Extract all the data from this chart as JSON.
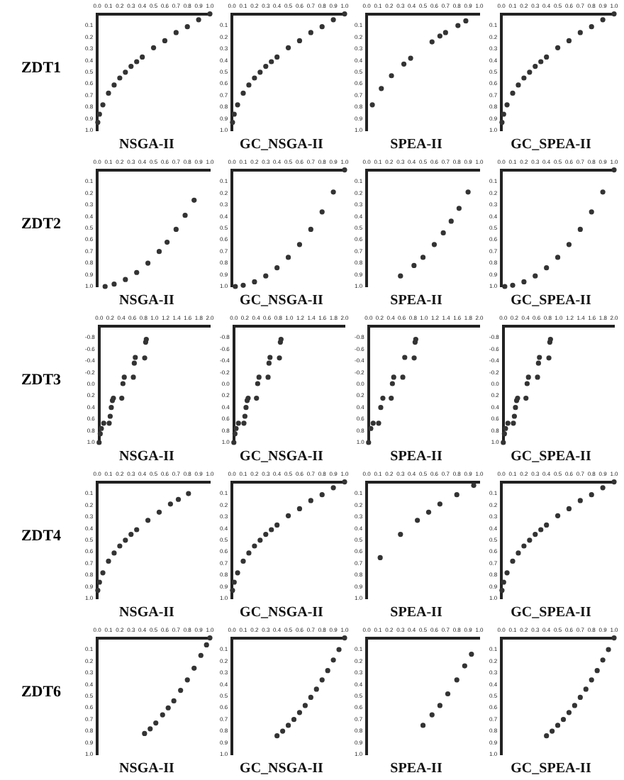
{
  "chart_data": [
    {
      "type": "scatter",
      "title": "NSGA-II",
      "ylabel": "ZDT1",
      "color": "#333333",
      "marker": "circle",
      "xlim": [
        0,
        1
      ],
      "ylim": [
        1,
        0
      ],
      "xticks": [
        {
          "value": 0,
          "label": "0.0"
        },
        0.1,
        0.2,
        0.3,
        0.4,
        0.5,
        0.6,
        0.7,
        0.8,
        0.9,
        {
          "value": 1,
          "label": "1.0"
        }
      ],
      "yticks": [
        {
          "value": 0,
          "label": null
        },
        0.1,
        0.2,
        0.3,
        0.4,
        0.5,
        0.6,
        0.7,
        0.8,
        0.9,
        {
          "value": 1,
          "label": "1.0"
        }
      ],
      "x": [
        0.005,
        0.02,
        0.05,
        0.1,
        0.15,
        0.2,
        0.25,
        0.3,
        0.35,
        0.4,
        0.5,
        0.6,
        0.7,
        0.8,
        0.9,
        1.0
      ],
      "values": [
        0.93,
        0.86,
        0.78,
        0.68,
        0.61,
        0.55,
        0.5,
        0.45,
        0.41,
        0.37,
        0.29,
        0.23,
        0.16,
        0.11,
        0.05,
        0.0
      ]
    },
    {
      "type": "scatter",
      "title": "GC_NSGA-II",
      "color": "#333333",
      "marker": "circle",
      "xlim": [
        0,
        1
      ],
      "ylim": [
        1,
        0
      ],
      "xticks": [
        {
          "value": 0,
          "label": "0.0"
        },
        0.1,
        0.2,
        0.3,
        0.4,
        0.5,
        0.6,
        0.7,
        0.8,
        0.9,
        {
          "value": 1,
          "label": "1.0"
        }
      ],
      "yticks": [
        {
          "value": 0,
          "label": null
        },
        0.1,
        0.2,
        0.3,
        0.4,
        0.5,
        0.6,
        0.7,
        0.8,
        0.9,
        {
          "value": 1,
          "label": "1.0"
        }
      ],
      "x": [
        0.005,
        0.02,
        0.05,
        0.1,
        0.15,
        0.2,
        0.25,
        0.3,
        0.35,
        0.4,
        0.5,
        0.6,
        0.7,
        0.8,
        0.9,
        1.0
      ],
      "values": [
        0.93,
        0.86,
        0.78,
        0.68,
        0.61,
        0.55,
        0.5,
        0.45,
        0.41,
        0.37,
        0.29,
        0.23,
        0.16,
        0.11,
        0.05,
        0.0
      ]
    },
    {
      "type": "scatter",
      "title": "SPEA-II",
      "color": "#333333",
      "marker": "circle",
      "xlim": [
        0,
        1
      ],
      "ylim": [
        1,
        0
      ],
      "xticks": [
        {
          "value": 0,
          "label": "0.0"
        },
        0.1,
        0.2,
        0.3,
        0.4,
        0.5,
        0.6,
        0.7,
        0.8,
        0.9,
        {
          "value": 1,
          "label": "1.0"
        }
      ],
      "yticks": [
        {
          "value": 0,
          "label": null
        },
        0.1,
        0.2,
        0.3,
        0.4,
        0.5,
        0.6,
        0.7,
        0.8,
        0.9,
        {
          "value": 1,
          "label": "1.0"
        }
      ],
      "x": [
        0.05,
        0.13,
        0.22,
        0.33,
        0.39,
        0.58,
        0.65,
        0.7,
        0.81,
        0.88
      ],
      "values": [
        0.78,
        0.64,
        0.53,
        0.43,
        0.38,
        0.24,
        0.19,
        0.16,
        0.1,
        0.06
      ]
    },
    {
      "type": "scatter",
      "title": "GC_SPEA-II",
      "color": "#333333",
      "marker": "circle",
      "xlim": [
        0,
        1
      ],
      "ylim": [
        1,
        0
      ],
      "xticks": [
        {
          "value": 0,
          "label": "0.0"
        },
        0.1,
        0.2,
        0.3,
        0.4,
        0.5,
        0.6,
        0.7,
        0.8,
        0.9,
        {
          "value": 1,
          "label": "1.0"
        }
      ],
      "yticks": [
        {
          "value": 0,
          "label": null
        },
        0.1,
        0.2,
        0.3,
        0.4,
        0.5,
        0.6,
        0.7,
        0.8,
        0.9,
        {
          "value": 1,
          "label": "1.0"
        }
      ],
      "x": [
        0.005,
        0.02,
        0.05,
        0.1,
        0.15,
        0.2,
        0.25,
        0.3,
        0.35,
        0.4,
        0.5,
        0.6,
        0.7,
        0.8,
        0.9,
        1.0
      ],
      "values": [
        0.93,
        0.86,
        0.78,
        0.68,
        0.61,
        0.55,
        0.5,
        0.45,
        0.41,
        0.37,
        0.29,
        0.23,
        0.16,
        0.11,
        0.05,
        0.0
      ]
    },
    {
      "type": "scatter",
      "title": "NSGA-II",
      "ylabel": "ZDT2",
      "color": "#333333",
      "marker": "circle",
      "xlim": [
        0,
        1
      ],
      "ylim": [
        1,
        0
      ],
      "xticks": [
        {
          "value": 0,
          "label": "0.0"
        },
        0.1,
        0.2,
        0.3,
        0.4,
        0.5,
        0.6,
        0.7,
        0.8,
        0.9,
        {
          "value": 1,
          "label": "1.0"
        }
      ],
      "yticks": [
        {
          "value": 0,
          "label": null
        },
        0.1,
        0.2,
        0.3,
        0.4,
        0.5,
        0.6,
        0.7,
        0.8,
        0.9,
        {
          "value": 1,
          "label": "1.0"
        }
      ],
      "x": [
        0.07,
        0.15,
        0.25,
        0.35,
        0.45,
        0.55,
        0.62,
        0.7,
        0.78,
        0.86
      ],
      "values": [
        1.0,
        0.98,
        0.94,
        0.88,
        0.8,
        0.7,
        0.62,
        0.51,
        0.39,
        0.26
      ]
    },
    {
      "type": "scatter",
      "title": "GC_NSGA-II",
      "color": "#333333",
      "marker": "circle",
      "xlim": [
        0,
        1
      ],
      "ylim": [
        1,
        0
      ],
      "xticks": [
        {
          "value": 0,
          "label": "0.0"
        },
        0.1,
        0.2,
        0.3,
        0.4,
        0.5,
        0.6,
        0.7,
        0.8,
        0.9,
        {
          "value": 1,
          "label": "1.0"
        }
      ],
      "yticks": [
        {
          "value": 0,
          "label": null
        },
        0.1,
        0.2,
        0.3,
        0.4,
        0.5,
        0.6,
        0.7,
        0.8,
        0.9,
        {
          "value": 1,
          "label": "1.0"
        }
      ],
      "x": [
        0.03,
        0.1,
        0.2,
        0.3,
        0.4,
        0.5,
        0.6,
        0.7,
        0.8,
        0.9,
        1.0
      ],
      "values": [
        1.0,
        0.99,
        0.96,
        0.91,
        0.84,
        0.75,
        0.64,
        0.51,
        0.36,
        0.19,
        0.0
      ]
    },
    {
      "type": "scatter",
      "title": "SPEA-II",
      "color": "#333333",
      "marker": "circle",
      "xlim": [
        0,
        1
      ],
      "ylim": [
        1,
        0
      ],
      "xticks": [
        {
          "value": 0,
          "label": "0.0"
        },
        0.1,
        0.2,
        0.3,
        0.4,
        0.5,
        0.6,
        0.7,
        0.8,
        0.9,
        {
          "value": 1,
          "label": "1.0"
        }
      ],
      "yticks": [
        {
          "value": 0,
          "label": null
        },
        0.1,
        0.2,
        0.3,
        0.4,
        0.5,
        0.6,
        0.7,
        0.8,
        0.9,
        {
          "value": 1,
          "label": "1.0"
        }
      ],
      "x": [
        0.3,
        0.42,
        0.5,
        0.6,
        0.68,
        0.75,
        0.82,
        0.9
      ],
      "values": [
        0.91,
        0.82,
        0.75,
        0.64,
        0.54,
        0.44,
        0.33,
        0.19
      ]
    },
    {
      "type": "scatter",
      "title": "GC_SPEA-II",
      "color": "#333333",
      "marker": "circle",
      "xlim": [
        0,
        1
      ],
      "ylim": [
        1,
        0
      ],
      "xticks": [
        {
          "value": 0,
          "label": "0.0"
        },
        0.1,
        0.2,
        0.3,
        0.4,
        0.5,
        0.6,
        0.7,
        0.8,
        0.9,
        {
          "value": 1,
          "label": "1.0"
        }
      ],
      "yticks": [
        {
          "value": 0,
          "label": null
        },
        0.1,
        0.2,
        0.3,
        0.4,
        0.5,
        0.6,
        0.7,
        0.8,
        0.9,
        {
          "value": 1,
          "label": "1.0"
        }
      ],
      "x": [
        0.03,
        0.1,
        0.2,
        0.3,
        0.4,
        0.5,
        0.6,
        0.7,
        0.8,
        0.9,
        1.0
      ],
      "values": [
        1.0,
        0.99,
        0.96,
        0.91,
        0.84,
        0.75,
        0.64,
        0.51,
        0.36,
        0.19,
        0.0
      ]
    },
    {
      "type": "scatter",
      "title": "NSGA-II",
      "ylabel": "ZDT3",
      "color": "#333333",
      "marker": "circle",
      "xlim": [
        0,
        2
      ],
      "ylim": [
        1,
        -1
      ],
      "xticks": [
        {
          "value": 0,
          "label": "0.0"
        },
        0.2,
        0.4,
        0.6,
        0.8,
        {
          "value": 1,
          "label": "1.0"
        },
        1.2,
        1.4,
        1.6,
        1.8,
        {
          "value": 2,
          "label": "2.0"
        }
      ],
      "yticks": [
        {
          "value": -1,
          "label": null
        },
        -0.8,
        -0.6,
        -0.4,
        -0.2,
        {
          "value": 0,
          "label": "0.0"
        },
        0.2,
        0.4,
        0.6,
        0.8,
        {
          "value": 1,
          "label": "1.0"
        }
      ],
      "x": [
        0.0,
        0.02,
        0.04,
        0.083,
        0.182,
        0.2,
        0.22,
        0.24,
        0.258,
        0.409,
        0.43,
        0.454,
        0.618,
        0.635,
        0.653,
        0.823,
        0.84,
        0.852
      ],
      "values": [
        1.0,
        0.85,
        0.76,
        0.67,
        0.67,
        0.55,
        0.4,
        0.28,
        0.24,
        0.24,
        -0.01,
        -0.12,
        -0.12,
        -0.36,
        -0.46,
        -0.45,
        -0.72,
        -0.77
      ]
    },
    {
      "type": "scatter",
      "title": "GC_NSGA-II",
      "color": "#333333",
      "marker": "circle",
      "xlim": [
        0,
        2
      ],
      "ylim": [
        1,
        -1
      ],
      "xticks": [
        {
          "value": 0,
          "label": "0.0"
        },
        0.2,
        0.4,
        0.6,
        0.8,
        {
          "value": 1,
          "label": "1.0"
        },
        1.2,
        1.4,
        1.6,
        1.8,
        {
          "value": 2,
          "label": "2.0"
        }
      ],
      "yticks": [
        {
          "value": -1,
          "label": null
        },
        -0.8,
        -0.6,
        -0.4,
        -0.2,
        {
          "value": 0,
          "label": "0.0"
        },
        0.2,
        0.4,
        0.6,
        0.8,
        {
          "value": 1,
          "label": "1.0"
        }
      ],
      "x": [
        0.0,
        0.02,
        0.04,
        0.083,
        0.182,
        0.2,
        0.22,
        0.24,
        0.258,
        0.409,
        0.43,
        0.454,
        0.618,
        0.635,
        0.653,
        0.823,
        0.84,
        0.852
      ],
      "values": [
        1.0,
        0.85,
        0.76,
        0.67,
        0.67,
        0.55,
        0.4,
        0.28,
        0.24,
        0.24,
        -0.01,
        -0.12,
        -0.12,
        -0.36,
        -0.46,
        -0.45,
        -0.72,
        -0.77
      ]
    },
    {
      "type": "scatter",
      "title": "SPEA-II",
      "color": "#333333",
      "marker": "circle",
      "xlim": [
        0,
        2
      ],
      "ylim": [
        1,
        -1
      ],
      "xticks": [
        {
          "value": 0,
          "label": "0.0"
        },
        0.2,
        0.4,
        0.6,
        0.8,
        {
          "value": 1,
          "label": "1.0"
        },
        1.2,
        1.4,
        1.6,
        1.8,
        {
          "value": 2,
          "label": "2.0"
        }
      ],
      "yticks": [
        {
          "value": -1,
          "label": null
        },
        -0.8,
        -0.6,
        -0.4,
        -0.2,
        {
          "value": 0,
          "label": "0.0"
        },
        0.2,
        0.4,
        0.6,
        0.8,
        {
          "value": 1,
          "label": "1.0"
        }
      ],
      "x": [
        0.0,
        0.04,
        0.083,
        0.182,
        0.22,
        0.258,
        0.409,
        0.43,
        0.454,
        0.618,
        0.653,
        0.823,
        0.84,
        0.852
      ],
      "values": [
        1.0,
        0.76,
        0.67,
        0.67,
        0.4,
        0.24,
        0.24,
        -0.01,
        -0.12,
        -0.12,
        -0.46,
        -0.45,
        -0.72,
        -0.77
      ]
    },
    {
      "type": "scatter",
      "title": "GC_SPEA-II",
      "color": "#333333",
      "marker": "circle",
      "xlim": [
        0,
        2
      ],
      "ylim": [
        1,
        -1
      ],
      "xticks": [
        {
          "value": 0,
          "label": "0.0"
        },
        0.2,
        0.4,
        0.6,
        0.8,
        {
          "value": 1,
          "label": "1.0"
        },
        1.2,
        1.4,
        1.6,
        1.8,
        {
          "value": 2,
          "label": "2.0"
        }
      ],
      "yticks": [
        {
          "value": -1,
          "label": null
        },
        -0.8,
        -0.6,
        -0.4,
        -0.2,
        {
          "value": 0,
          "label": "0.0"
        },
        0.2,
        0.4,
        0.6,
        0.8,
        {
          "value": 1,
          "label": "1.0"
        }
      ],
      "x": [
        0.0,
        0.02,
        0.04,
        0.083,
        0.182,
        0.2,
        0.22,
        0.24,
        0.258,
        0.409,
        0.43,
        0.454,
        0.618,
        0.635,
        0.653,
        0.823,
        0.84,
        0.852
      ],
      "values": [
        1.0,
        0.85,
        0.76,
        0.67,
        0.67,
        0.55,
        0.4,
        0.28,
        0.24,
        0.24,
        -0.01,
        -0.12,
        -0.12,
        -0.36,
        -0.46,
        -0.45,
        -0.72,
        -0.77
      ]
    },
    {
      "type": "scatter",
      "title": "NSGA-II",
      "ylabel": "ZDT4",
      "color": "#333333",
      "marker": "circle",
      "xlim": [
        0,
        1
      ],
      "ylim": [
        1,
        0
      ],
      "xticks": [
        {
          "value": 0,
          "label": "0.0"
        },
        0.1,
        0.2,
        0.3,
        0.4,
        0.5,
        0.6,
        0.7,
        0.8,
        0.9,
        {
          "value": 1,
          "label": "1.0"
        }
      ],
      "yticks": [
        {
          "value": 0,
          "label": null
        },
        0.1,
        0.2,
        0.3,
        0.4,
        0.5,
        0.6,
        0.7,
        0.8,
        0.9,
        {
          "value": 1,
          "label": "1.0"
        }
      ],
      "x": [
        0.005,
        0.02,
        0.05,
        0.1,
        0.15,
        0.2,
        0.25,
        0.3,
        0.35,
        0.45,
        0.55,
        0.65,
        0.72,
        0.81
      ],
      "values": [
        0.93,
        0.86,
        0.78,
        0.68,
        0.61,
        0.55,
        0.5,
        0.45,
        0.41,
        0.33,
        0.26,
        0.19,
        0.15,
        0.1
      ]
    },
    {
      "type": "scatter",
      "title": "GC_NSGA-II",
      "color": "#333333",
      "marker": "circle",
      "xlim": [
        0,
        1
      ],
      "ylim": [
        1,
        0
      ],
      "xticks": [
        {
          "value": 0,
          "label": "0.0"
        },
        0.1,
        0.2,
        0.3,
        0.4,
        0.5,
        0.6,
        0.7,
        0.8,
        0.9,
        {
          "value": 1,
          "label": "1.0"
        }
      ],
      "yticks": [
        {
          "value": 0,
          "label": null
        },
        0.1,
        0.2,
        0.3,
        0.4,
        0.5,
        0.6,
        0.7,
        0.8,
        0.9,
        {
          "value": 1,
          "label": "1.0"
        }
      ],
      "x": [
        0.005,
        0.02,
        0.05,
        0.1,
        0.15,
        0.2,
        0.25,
        0.3,
        0.35,
        0.4,
        0.5,
        0.6,
        0.7,
        0.8,
        0.9,
        1.0
      ],
      "values": [
        0.93,
        0.86,
        0.78,
        0.68,
        0.61,
        0.55,
        0.5,
        0.45,
        0.41,
        0.37,
        0.29,
        0.23,
        0.16,
        0.11,
        0.05,
        0.0
      ]
    },
    {
      "type": "scatter",
      "title": "SPEA-II",
      "color": "#333333",
      "marker": "circle",
      "xlim": [
        0,
        1
      ],
      "ylim": [
        1,
        0
      ],
      "xticks": [
        {
          "value": 0,
          "label": "0.0"
        },
        0.1,
        0.2,
        0.3,
        0.4,
        0.5,
        0.6,
        0.7,
        0.8,
        0.9,
        {
          "value": 1,
          "label": "1.0"
        }
      ],
      "yticks": [
        {
          "value": 0,
          "label": null
        },
        0.1,
        0.2,
        0.3,
        0.4,
        0.5,
        0.6,
        0.7,
        0.8,
        0.9,
        {
          "value": 1,
          "label": "1.0"
        }
      ],
      "x": [
        0.12,
        0.3,
        0.45,
        0.55,
        0.65,
        0.8,
        0.95
      ],
      "values": [
        0.65,
        0.45,
        0.33,
        0.26,
        0.19,
        0.11,
        0.03
      ]
    },
    {
      "type": "scatter",
      "title": "GC_SPEA-II",
      "color": "#333333",
      "marker": "circle",
      "xlim": [
        0,
        1
      ],
      "ylim": [
        1,
        0
      ],
      "xticks": [
        {
          "value": 0,
          "label": "0.0"
        },
        0.1,
        0.2,
        0.3,
        0.4,
        0.5,
        0.6,
        0.7,
        0.8,
        0.9,
        {
          "value": 1,
          "label": "1.0"
        }
      ],
      "yticks": [
        {
          "value": 0,
          "label": null
        },
        0.1,
        0.2,
        0.3,
        0.4,
        0.5,
        0.6,
        0.7,
        0.8,
        0.9,
        {
          "value": 1,
          "label": "1.0"
        }
      ],
      "x": [
        0.005,
        0.02,
        0.05,
        0.1,
        0.15,
        0.2,
        0.25,
        0.3,
        0.35,
        0.4,
        0.5,
        0.6,
        0.7,
        0.8,
        0.9,
        1.0
      ],
      "values": [
        0.93,
        0.86,
        0.78,
        0.68,
        0.61,
        0.55,
        0.5,
        0.45,
        0.41,
        0.37,
        0.29,
        0.23,
        0.16,
        0.11,
        0.05,
        0.0
      ]
    },
    {
      "type": "scatter",
      "title": "NSGA-II",
      "ylabel": "ZDT6",
      "color": "#333333",
      "marker": "circle",
      "xlim": [
        0,
        1
      ],
      "ylim": [
        1,
        0
      ],
      "xticks": [
        {
          "value": 0,
          "label": "0.0"
        },
        0.1,
        0.2,
        0.3,
        0.4,
        0.5,
        0.6,
        0.7,
        0.8,
        0.9,
        {
          "value": 1,
          "label": "1.0"
        }
      ],
      "yticks": [
        {
          "value": 0,
          "label": null
        },
        0.1,
        0.2,
        0.3,
        0.4,
        0.5,
        0.6,
        0.7,
        0.8,
        0.9,
        {
          "value": 1,
          "label": "1.0"
        }
      ],
      "x": [
        0.42,
        0.47,
        0.52,
        0.58,
        0.63,
        0.68,
        0.74,
        0.8,
        0.86,
        0.92,
        0.97,
        1.0
      ],
      "values": [
        0.82,
        0.78,
        0.73,
        0.66,
        0.6,
        0.54,
        0.45,
        0.36,
        0.26,
        0.15,
        0.06,
        0.0
      ]
    },
    {
      "type": "scatter",
      "title": "GC_NSGA-II",
      "color": "#333333",
      "marker": "circle",
      "xlim": [
        0,
        1
      ],
      "ylim": [
        1,
        0
      ],
      "xticks": [
        {
          "value": 0,
          "label": "0.0"
        },
        0.1,
        0.2,
        0.3,
        0.4,
        0.5,
        0.6,
        0.7,
        0.8,
        0.9,
        {
          "value": 1,
          "label": "1.0"
        }
      ],
      "yticks": [
        {
          "value": 0,
          "label": null
        },
        0.1,
        0.2,
        0.3,
        0.4,
        0.5,
        0.6,
        0.7,
        0.8,
        0.9,
        {
          "value": 1,
          "label": "1.0"
        }
      ],
      "x": [
        0.4,
        0.45,
        0.5,
        0.55,
        0.6,
        0.65,
        0.7,
        0.75,
        0.8,
        0.85,
        0.9,
        0.95,
        1.0
      ],
      "values": [
        0.84,
        0.8,
        0.75,
        0.7,
        0.64,
        0.58,
        0.51,
        0.44,
        0.36,
        0.28,
        0.19,
        0.1,
        0.0
      ]
    },
    {
      "type": "scatter",
      "title": "SPEA-II",
      "color": "#333333",
      "marker": "circle",
      "xlim": [
        0,
        1
      ],
      "ylim": [
        1,
        0
      ],
      "xticks": [
        {
          "value": 0,
          "label": "0.0"
        },
        0.1,
        0.2,
        0.3,
        0.4,
        0.5,
        0.6,
        0.7,
        0.8,
        0.9,
        {
          "value": 1,
          "label": "1.0"
        }
      ],
      "yticks": [
        {
          "value": 0,
          "label": null
        },
        0.1,
        0.2,
        0.3,
        0.4,
        0.5,
        0.6,
        0.7,
        0.8,
        0.9,
        {
          "value": 1,
          "label": "1.0"
        }
      ],
      "x": [
        0.5,
        0.58,
        0.65,
        0.72,
        0.8,
        0.87,
        0.93
      ],
      "values": [
        0.75,
        0.66,
        0.58,
        0.48,
        0.36,
        0.24,
        0.14
      ]
    },
    {
      "type": "scatter",
      "title": "GC_SPEA-II",
      "color": "#333333",
      "marker": "circle",
      "xlim": [
        0,
        1
      ],
      "ylim": [
        1,
        0
      ],
      "xticks": [
        {
          "value": 0,
          "label": "0.0"
        },
        0.1,
        0.2,
        0.3,
        0.4,
        0.5,
        0.6,
        0.7,
        0.8,
        0.9,
        {
          "value": 1,
          "label": "1.0"
        }
      ],
      "yticks": [
        {
          "value": 0,
          "label": null
        },
        0.1,
        0.2,
        0.3,
        0.4,
        0.5,
        0.6,
        0.7,
        0.8,
        0.9,
        {
          "value": 1,
          "label": "1.0"
        }
      ],
      "x": [
        0.4,
        0.45,
        0.5,
        0.55,
        0.6,
        0.65,
        0.7,
        0.75,
        0.8,
        0.85,
        0.9,
        0.95,
        1.0
      ],
      "values": [
        0.84,
        0.8,
        0.75,
        0.7,
        0.64,
        0.58,
        0.51,
        0.44,
        0.36,
        0.28,
        0.19,
        0.1,
        0.0
      ]
    }
  ]
}
